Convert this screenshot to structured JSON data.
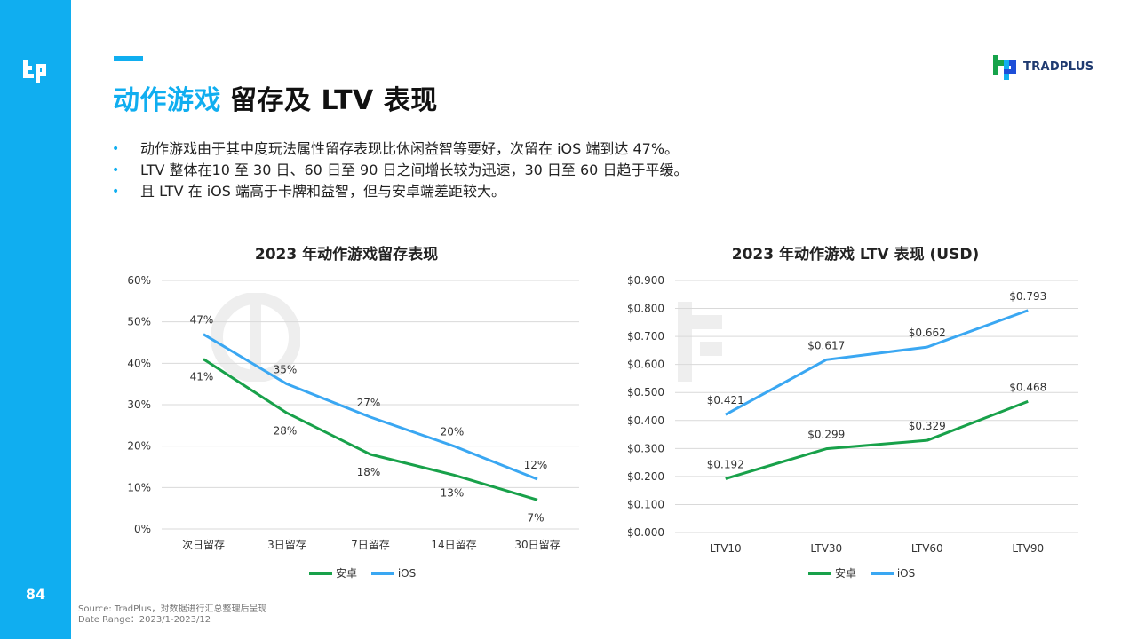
{
  "page": {
    "title_highlight": "动作游戏",
    "title_rest": "留存及 LTV 表现",
    "page_number": "84",
    "brand": "TRADPLUS",
    "accent_color": "#10aef0"
  },
  "bullets": [
    "动作游戏由于其中度玩法属性留存表现比休闲益智等要好，次留在 iOS 端到达 47%。",
    "LTV 整体在10 至 30 日、60 日至 90 日之间增长较为迅速，30 日至 60 日趋于平缓。",
    "且 LTV 在 iOS 端高于卡牌和益智，但与安卓端差距较大。"
  ],
  "bullet_symbol": "•",
  "source": {
    "line1": "Source: TradPlus，对数据进行汇总整理后呈现",
    "line2": "Date Range：2023/1-2023/12"
  },
  "chart_data": [
    {
      "type": "line",
      "title": "2023 年动作游戏留存表现",
      "categories": [
        "次日留存",
        "3日留存",
        "7日留存",
        "14日留存",
        "30日留存"
      ],
      "series": [
        {
          "name": "安卓",
          "values": [
            41,
            28,
            18,
            13,
            7
          ],
          "color": "#18a14a"
        },
        {
          "name": "iOS",
          "values": [
            47,
            35,
            27,
            20,
            12
          ],
          "color": "#3aa7f2"
        }
      ],
      "value_format": "percent",
      "ylim": [
        0,
        60
      ],
      "yticks": [
        "0%",
        "10%",
        "20%",
        "30%",
        "40%",
        "50%",
        "60%"
      ],
      "grid": true,
      "legend": "bottom"
    },
    {
      "type": "line",
      "title": "2023 年动作游戏 LTV 表现 (USD)",
      "categories": [
        "LTV10",
        "LTV30",
        "LTV60",
        "LTV90"
      ],
      "series": [
        {
          "name": "安卓",
          "values": [
            0.192,
            0.299,
            0.329,
            0.468
          ],
          "color": "#18a14a"
        },
        {
          "name": "iOS",
          "values": [
            0.421,
            0.617,
            0.662,
            0.793
          ],
          "color": "#3aa7f2"
        }
      ],
      "value_format": "usd",
      "ylim": [
        0,
        0.9
      ],
      "yticks": [
        "$0.000",
        "$0.100",
        "$0.200",
        "$0.300",
        "$0.400",
        "$0.500",
        "$0.600",
        "$0.700",
        "$0.800",
        "$0.900"
      ],
      "grid": true,
      "legend": "bottom"
    }
  ]
}
